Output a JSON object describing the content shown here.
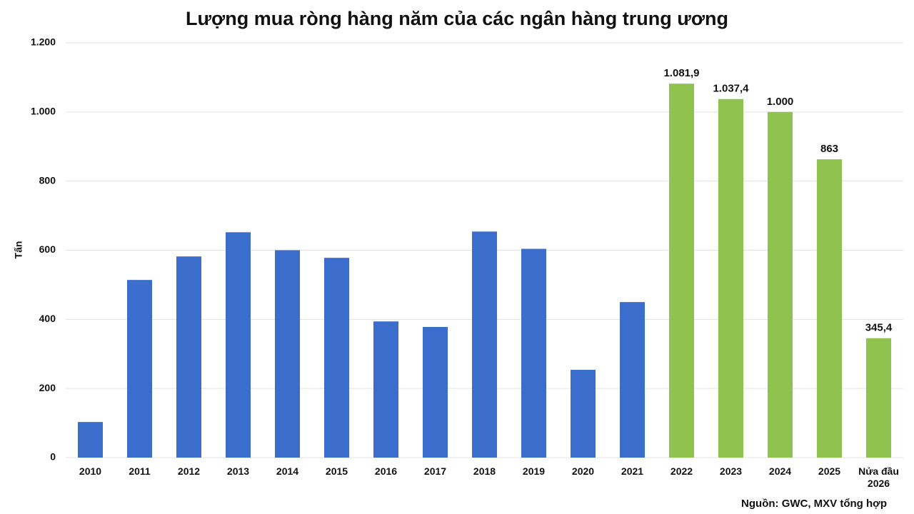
{
  "chart_data": {
    "type": "bar",
    "title": "Lượng mua ròng hàng năm của các ngân hàng trung ương",
    "y_label": "Tấn",
    "source": "Nguồn: GWC, MXV tổng hợp",
    "categories": [
      "2010",
      "2011",
      "2012",
      "2013",
      "2014",
      "2015",
      "2016",
      "2017",
      "2018",
      "2019",
      "2020",
      "2021",
      "2022",
      "2023",
      "2024",
      "2025",
      "Nửa đầu 2026"
    ],
    "values": [
      103,
      514,
      582,
      652,
      600,
      578,
      394,
      378,
      654,
      604,
      254,
      450,
      1081.9,
      1037.4,
      1000,
      863,
      345.4
    ],
    "value_labels": [
      null,
      null,
      null,
      null,
      null,
      null,
      null,
      null,
      null,
      null,
      null,
      null,
      "1.081,9",
      "1.037,4",
      "1.000",
      "863",
      "345,4"
    ],
    "colors": [
      "#3b6dcc",
      "#3b6dcc",
      "#3b6dcc",
      "#3b6dcc",
      "#3b6dcc",
      "#3b6dcc",
      "#3b6dcc",
      "#3b6dcc",
      "#3b6dcc",
      "#3b6dcc",
      "#3b6dcc",
      "#3b6dcc",
      "#8fc24f",
      "#8fc24f",
      "#8fc24f",
      "#8fc24f",
      "#8fc24f"
    ],
    "ylim": [
      0,
      1200
    ],
    "yticks": [
      0,
      200,
      400,
      600,
      800,
      {
        "value": 1000,
        "label": "1.000"
      },
      {
        "value": 1200,
        "label": "1.200"
      }
    ],
    "grid": true
  }
}
